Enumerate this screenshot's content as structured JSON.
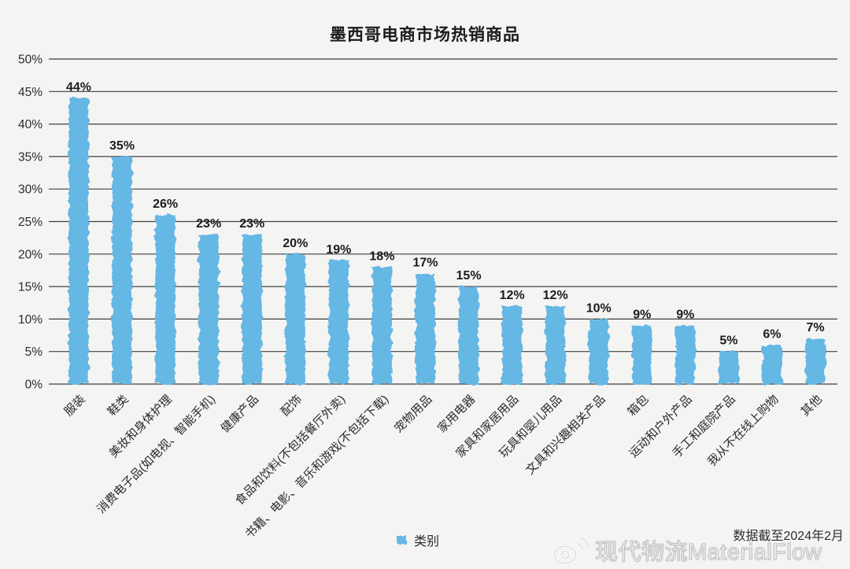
{
  "title": "墨西哥电商市场热销商品",
  "legend": {
    "label": "类别",
    "swatch_color": "#65b7e4"
  },
  "footer": {
    "note": "数据截至2024年2月"
  },
  "watermark": {
    "icon": "weibo-icon",
    "text": "现代物流MaterialFlow"
  },
  "chart_data": {
    "type": "bar",
    "title": "墨西哥电商市场热销商品",
    "categories": [
      "服装",
      "鞋类",
      "美妆和身体护理",
      "消费电子品(如电视、智能手机)",
      "健康产品",
      "配饰",
      "食品和饮料(不包括餐厅外卖)",
      "书籍、电影、音乐和游戏(不包括下载)",
      "宠物用品",
      "家用电器",
      "家具和家居用品",
      "玩具和婴儿用品",
      "文具和兴趣相关产品",
      "箱包",
      "运动和户外产品",
      "手工和庭院产品",
      "我从不在线上购物",
      "其他"
    ],
    "values": [
      44,
      35,
      26,
      23,
      23,
      20,
      19,
      18,
      17,
      15,
      12,
      12,
      10,
      9,
      9,
      5,
      6,
      7
    ],
    "value_labels": [
      "44%",
      "35%",
      "26%",
      "23%",
      "23%",
      "20%",
      "19%",
      "18%",
      "17%",
      "15%",
      "12%",
      "12%",
      "10%",
      "9%",
      "9%",
      "5%",
      "6%",
      "7%"
    ],
    "series_name": "类别",
    "xlabel": "",
    "ylabel": "",
    "ylim": [
      0,
      50
    ],
    "ytick_step": 5,
    "ytick_labels": [
      "0%",
      "5%",
      "10%",
      "15%",
      "20%",
      "25%",
      "30%",
      "35%",
      "40%",
      "45%",
      "50%"
    ],
    "grid": true,
    "legend_position": "bottom-center",
    "bar_color": "#65b7e4",
    "grid_color": "#3f3f3f",
    "text_color": "#2b2b2b",
    "style": "hand-drawn",
    "xtick_rotation": 45
  }
}
